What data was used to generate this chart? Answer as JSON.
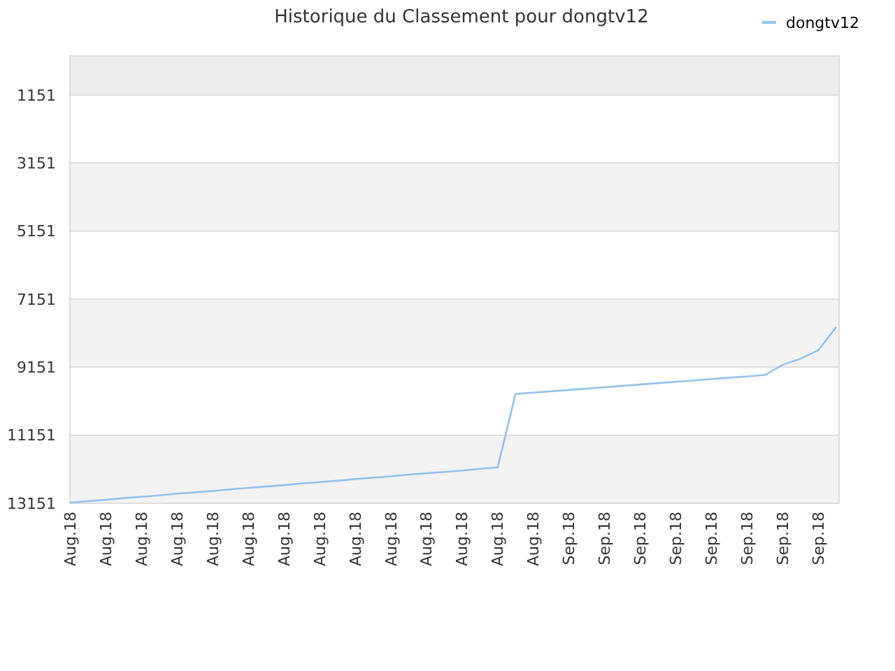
{
  "chart_data": {
    "type": "line",
    "title": "Historique du Classement pour dongtv12",
    "categories": [
      "Aug.18",
      null,
      "Aug.18",
      null,
      "Aug.18",
      null,
      "Aug.18",
      null,
      "Aug.18",
      null,
      "Aug.18",
      null,
      "Aug.18",
      null,
      "Aug.18",
      null,
      "Aug.18",
      null,
      "Aug.18",
      null,
      "Aug.18",
      null,
      "Aug.18",
      null,
      "Aug.18",
      null,
      "Aug.18",
      null,
      "Sep.18",
      null,
      "Sep.18",
      null,
      "Sep.18",
      null,
      "Sep.18",
      null,
      "Sep.18",
      null,
      "Sep.18",
      null,
      "Sep.18",
      null,
      "Sep.18",
      null
    ],
    "ylim": [
      13151,
      0
    ],
    "yticks": [
      13151,
      11151,
      9151,
      7151,
      5151,
      3151,
      1151
    ],
    "bands": [
      {
        "axis": "y",
        "from": 1151,
        "to": 0,
        "color": "#ececec"
      }
    ],
    "grid": "y",
    "legend": "top right",
    "marker": "none",
    "line_style": "solid",
    "series": [
      {
        "name": "dongtv12",
        "color": "#90c3f0",
        "values": [
          13130,
          13090,
          13050,
          13000,
          12960,
          12920,
          12870,
          12830,
          12790,
          12740,
          12700,
          12660,
          12620,
          12570,
          12530,
          12490,
          12440,
          12400,
          12360,
          12310,
          12270,
          12230,
          12190,
          12140,
          12100,
          9940,
          9900,
          9860,
          9820,
          9780,
          9740,
          9700,
          9660,
          9620,
          9580,
          9540,
          9500,
          9460,
          9420,
          9380,
          9080,
          8900,
          8650,
          7970
        ]
      }
    ]
  }
}
